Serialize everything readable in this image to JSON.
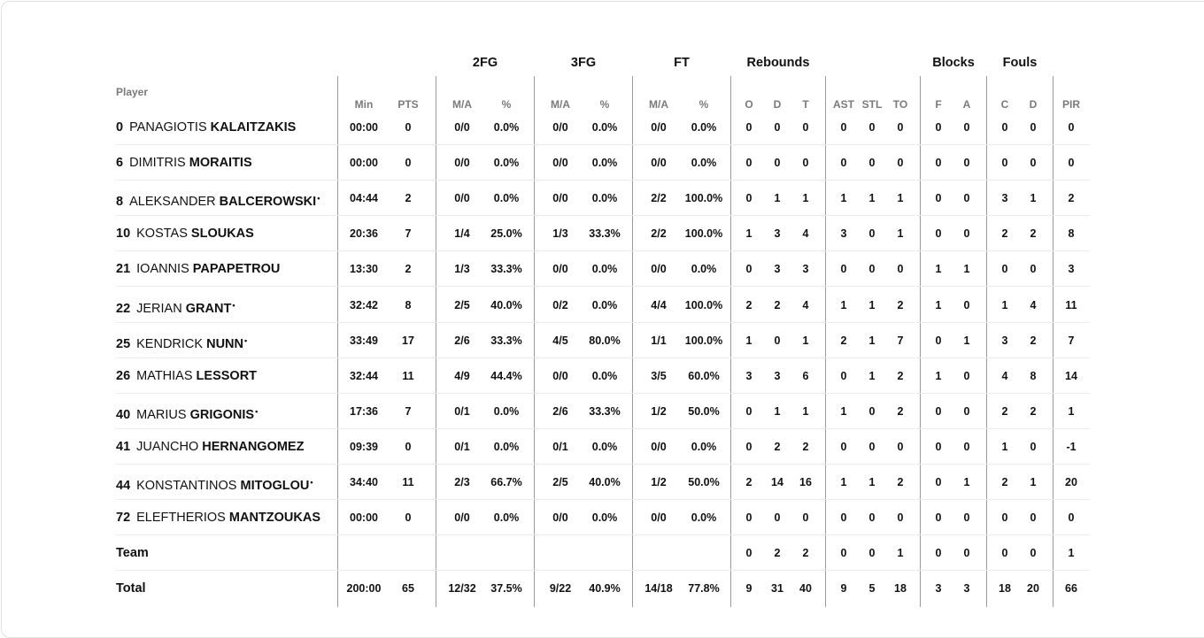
{
  "table": {
    "player_header": "Player",
    "groups": [
      {
        "key": "fg2",
        "label": "2FG"
      },
      {
        "key": "fg3",
        "label": "3FG"
      },
      {
        "key": "ft",
        "label": "FT"
      },
      {
        "key": "reb",
        "label": "Rebounds"
      },
      {
        "key": "blk",
        "label": "Blocks"
      },
      {
        "key": "fouls",
        "label": "Fouls"
      }
    ],
    "columns": [
      "Min",
      "PTS",
      "M/A",
      "%",
      "M/A",
      "%",
      "M/A",
      "%",
      "O",
      "D",
      "T",
      "AST",
      "STL",
      "TO",
      "F",
      "A",
      "C",
      "D",
      "PIR"
    ],
    "rows": [
      {
        "number": "0",
        "first": "PANAGIOTIS",
        "last": "KALAITZAKIS",
        "starter": false,
        "stats": [
          "00:00",
          "0",
          "0/0",
          "0.0%",
          "0/0",
          "0.0%",
          "0/0",
          "0.0%",
          "0",
          "0",
          "0",
          "0",
          "0",
          "0",
          "0",
          "0",
          "0",
          "0",
          "0"
        ]
      },
      {
        "number": "6",
        "first": "DIMITRIS",
        "last": "MORAITIS",
        "starter": false,
        "stats": [
          "00:00",
          "0",
          "0/0",
          "0.0%",
          "0/0",
          "0.0%",
          "0/0",
          "0.0%",
          "0",
          "0",
          "0",
          "0",
          "0",
          "0",
          "0",
          "0",
          "0",
          "0",
          "0"
        ]
      },
      {
        "number": "8",
        "first": "ALEKSANDER",
        "last": "BALCEROWSKI",
        "starter": true,
        "stats": [
          "04:44",
          "2",
          "0/0",
          "0.0%",
          "0/0",
          "0.0%",
          "2/2",
          "100.0%",
          "0",
          "1",
          "1",
          "1",
          "1",
          "1",
          "0",
          "0",
          "3",
          "1",
          "2"
        ]
      },
      {
        "number": "10",
        "first": "KOSTAS",
        "last": "SLOUKAS",
        "starter": false,
        "stats": [
          "20:36",
          "7",
          "1/4",
          "25.0%",
          "1/3",
          "33.3%",
          "2/2",
          "100.0%",
          "1",
          "3",
          "4",
          "3",
          "0",
          "1",
          "0",
          "0",
          "2",
          "2",
          "8"
        ]
      },
      {
        "number": "21",
        "first": "IOANNIS",
        "last": "PAPAPETROU",
        "starter": false,
        "stats": [
          "13:30",
          "2",
          "1/3",
          "33.3%",
          "0/0",
          "0.0%",
          "0/0",
          "0.0%",
          "0",
          "3",
          "3",
          "0",
          "0",
          "0",
          "1",
          "1",
          "0",
          "0",
          "3"
        ]
      },
      {
        "number": "22",
        "first": "JERIAN",
        "last": "GRANT",
        "starter": true,
        "stats": [
          "32:42",
          "8",
          "2/5",
          "40.0%",
          "0/2",
          "0.0%",
          "4/4",
          "100.0%",
          "2",
          "2",
          "4",
          "1",
          "1",
          "2",
          "1",
          "0",
          "1",
          "4",
          "11"
        ]
      },
      {
        "number": "25",
        "first": "KENDRICK",
        "last": "NUNN",
        "starter": true,
        "stats": [
          "33:49",
          "17",
          "2/6",
          "33.3%",
          "4/5",
          "80.0%",
          "1/1",
          "100.0%",
          "1",
          "0",
          "1",
          "2",
          "1",
          "7",
          "0",
          "1",
          "3",
          "2",
          "7"
        ]
      },
      {
        "number": "26",
        "first": "MATHIAS",
        "last": "LESSORT",
        "starter": false,
        "stats": [
          "32:44",
          "11",
          "4/9",
          "44.4%",
          "0/0",
          "0.0%",
          "3/5",
          "60.0%",
          "3",
          "3",
          "6",
          "0",
          "1",
          "2",
          "1",
          "0",
          "4",
          "8",
          "14"
        ]
      },
      {
        "number": "40",
        "first": "MARIUS",
        "last": "GRIGONIS",
        "starter": true,
        "stats": [
          "17:36",
          "7",
          "0/1",
          "0.0%",
          "2/6",
          "33.3%",
          "1/2",
          "50.0%",
          "0",
          "1",
          "1",
          "1",
          "0",
          "2",
          "0",
          "0",
          "2",
          "2",
          "1"
        ]
      },
      {
        "number": "41",
        "first": "JUANCHO",
        "last": "HERNANGOMEZ",
        "starter": false,
        "stats": [
          "09:39",
          "0",
          "0/1",
          "0.0%",
          "0/1",
          "0.0%",
          "0/0",
          "0.0%",
          "0",
          "2",
          "2",
          "0",
          "0",
          "0",
          "0",
          "0",
          "1",
          "0",
          "-1"
        ]
      },
      {
        "number": "44",
        "first": "KONSTANTINOS",
        "last": "MITOGLOU",
        "starter": true,
        "stats": [
          "34:40",
          "11",
          "2/3",
          "66.7%",
          "2/5",
          "40.0%",
          "1/2",
          "50.0%",
          "2",
          "14",
          "16",
          "1",
          "1",
          "2",
          "0",
          "1",
          "2",
          "1",
          "20"
        ]
      },
      {
        "number": "72",
        "first": "ELEFTHERIOS",
        "last": "MANTZOUKAS",
        "starter": false,
        "stats": [
          "00:00",
          "0",
          "0/0",
          "0.0%",
          "0/0",
          "0.0%",
          "0/0",
          "0.0%",
          "0",
          "0",
          "0",
          "0",
          "0",
          "0",
          "0",
          "0",
          "0",
          "0",
          "0"
        ]
      }
    ],
    "team_row": {
      "label": "Team",
      "stats": [
        "",
        "",
        "",
        "",
        "",
        "",
        "",
        "",
        "0",
        "2",
        "2",
        "0",
        "0",
        "1",
        "0",
        "0",
        "0",
        "0",
        "1"
      ]
    },
    "total_row": {
      "label": "Total",
      "stats": [
        "200:00",
        "65",
        "12/32",
        "37.5%",
        "9/22",
        "40.9%",
        "14/18",
        "77.8%",
        "9",
        "31",
        "40",
        "9",
        "5",
        "18",
        "3",
        "3",
        "18",
        "20",
        "66"
      ]
    },
    "starter_marker": "*"
  }
}
